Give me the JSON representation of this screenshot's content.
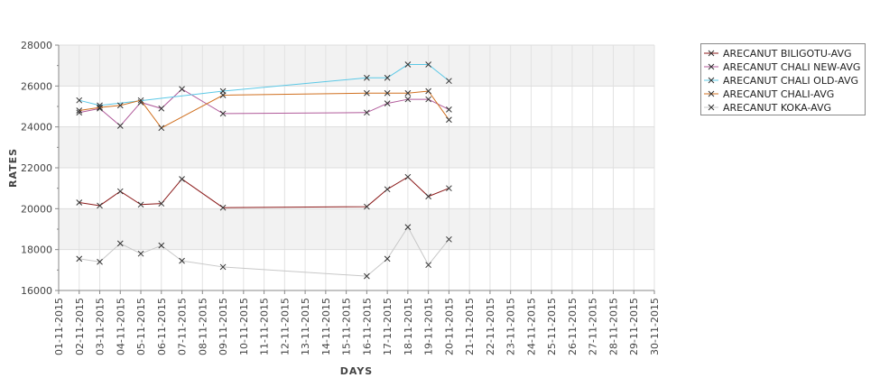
{
  "chart_data": {
    "type": "line",
    "xlabel": "DAYS",
    "ylabel": "RATES",
    "ylim": [
      16000,
      28000
    ],
    "yticks": [
      16000,
      18000,
      20000,
      22000,
      24000,
      26000,
      28000
    ],
    "x_tick_labels": [
      "01-11-2015",
      "02-11-2015",
      "03-11-2015",
      "04-11-2015",
      "05-11-2015",
      "06-11-2015",
      "07-11-2015",
      "08-11-2015",
      "09-11-2015",
      "10-11-2015",
      "11-11-2015",
      "12-11-2015",
      "13-11-2015",
      "14-11-2015",
      "15-11-2015",
      "16-11-2015",
      "17-11-2015",
      "18-11-2015",
      "19-11-2015",
      "20-11-2015",
      "21-11-2015",
      "22-11-2015",
      "23-11-2015",
      "24-11-2015",
      "25-11-2015",
      "26-11-2015",
      "27-11-2015",
      "28-11-2015",
      "29-11-2015",
      "30-11-2015"
    ],
    "grid": true,
    "legend_position": "right",
    "series": [
      {
        "name": "ARECANUT BILIGOTU-AVG",
        "color": "#8b1a1a",
        "x": [
          "02-11-2015",
          "03-11-2015",
          "04-11-2015",
          "05-11-2015",
          "06-11-2015",
          "07-11-2015",
          "09-11-2015",
          "16-11-2015",
          "17-11-2015",
          "18-11-2015",
          "19-11-2015",
          "20-11-2015"
        ],
        "values": [
          20300,
          20150,
          20850,
          20200,
          20250,
          21450,
          20050,
          20100,
          20950,
          21550,
          20600,
          21000
        ]
      },
      {
        "name": "ARECANUT CHALI NEW-AVG",
        "color": "#b05a9a",
        "x": [
          "02-11-2015",
          "03-11-2015",
          "04-11-2015",
          "05-11-2015",
          "06-11-2015",
          "07-11-2015",
          "09-11-2015",
          "16-11-2015",
          "17-11-2015",
          "18-11-2015",
          "19-11-2015",
          "20-11-2015"
        ],
        "values": [
          24700,
          24900,
          24050,
          25200,
          24900,
          25850,
          24650,
          24700,
          25150,
          25350,
          25350,
          24850
        ]
      },
      {
        "name": "ARECANUT CHALI OLD-AVG",
        "color": "#5bc8e6",
        "x": [
          "02-11-2015",
          "03-11-2015",
          "09-11-2015",
          "16-11-2015",
          "17-11-2015",
          "18-11-2015",
          "19-11-2015",
          "20-11-2015"
        ],
        "values": [
          25300,
          25050,
          25750,
          26400,
          26400,
          27050,
          27050,
          26250
        ]
      },
      {
        "name": "ARECANUT CHALI-AVG",
        "color": "#d07020",
        "x": [
          "02-11-2015",
          "03-11-2015",
          "04-11-2015",
          "05-11-2015",
          "06-11-2015",
          "09-11-2015",
          "16-11-2015",
          "17-11-2015",
          "18-11-2015",
          "19-11-2015",
          "20-11-2015"
        ],
        "values": [
          24800,
          24950,
          25050,
          25300,
          23950,
          25550,
          25650,
          25650,
          25650,
          25750,
          24350
        ]
      },
      {
        "name": "ARECANUT KOKA-AVG",
        "color": "#c8c8c8",
        "x": [
          "02-11-2015",
          "03-11-2015",
          "04-11-2015",
          "05-11-2015",
          "06-11-2015",
          "07-11-2015",
          "09-11-2015",
          "16-11-2015",
          "17-11-2015",
          "18-11-2015",
          "19-11-2015",
          "20-11-2015"
        ],
        "values": [
          17550,
          17400,
          18300,
          17800,
          18200,
          17450,
          17150,
          16700,
          17550,
          19100,
          17250,
          18500
        ]
      }
    ]
  }
}
